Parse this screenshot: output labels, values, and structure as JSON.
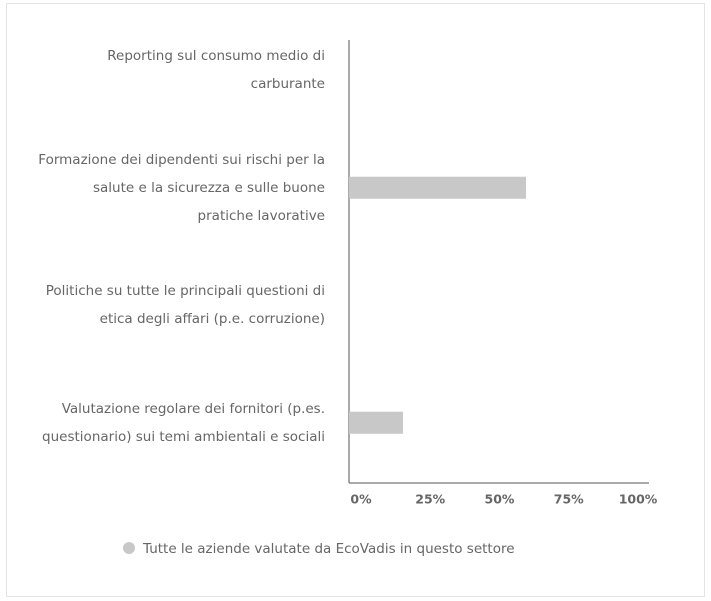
{
  "chart_data": {
    "type": "barh",
    "categories": [
      "Reporting sul consumo medio di carburante",
      "Formazione dei dipendenti sui rischi per la salute e la sicurezza e sulle buone pratiche lavorative",
      "Politiche su tutte le principali questioni di etica degli affari (p.e. corruzione)",
      "Valutazione regolare dei fornitori (p.es. questionario) sui temi ambientali e sociali"
    ],
    "series": [
      {
        "name": "Tutte le aziende valutate da EcoVadis in questo settore",
        "color": "#c8c8c8",
        "values": [
          0,
          59,
          0,
          18
        ]
      }
    ],
    "xlim": [
      0,
      100
    ],
    "xticks": [
      {
        "value": 0,
        "label": "0%"
      },
      {
        "value": 25,
        "label": "25%"
      },
      {
        "value": 50,
        "label": "50%"
      },
      {
        "value": 75,
        "label": "75%"
      },
      {
        "value": 100,
        "label": "100%"
      }
    ],
    "legend": "bottom"
  }
}
